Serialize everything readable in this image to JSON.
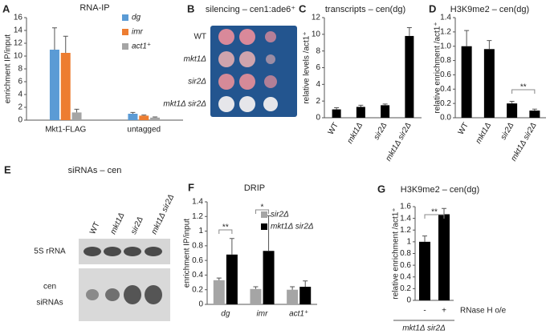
{
  "chart_data": [
    {
      "panel": "A",
      "type": "bar",
      "title": "RNA-IP",
      "y_label": "enrichment IP/input",
      "categories": [
        "Mkt1-FLAG",
        "untagged"
      ],
      "series": [
        {
          "name": "dg",
          "color": "#5b9bd5",
          "values": [
            11.0,
            1.0
          ],
          "errors": [
            3.4,
            0.2
          ]
        },
        {
          "name": "imr",
          "color": "#ed7d31",
          "values": [
            10.5,
            0.7
          ],
          "errors": [
            2.6,
            0.1
          ]
        },
        {
          "name": "act1⁺",
          "color": "#a5a5a5",
          "values": [
            1.2,
            0.4
          ],
          "errors": [
            0.5,
            0.1
          ]
        }
      ],
      "ylim": [
        0,
        16
      ],
      "yticks": [
        0,
        2,
        4,
        6,
        8,
        10,
        12,
        14,
        16
      ]
    },
    {
      "panel": "C",
      "type": "bar",
      "title": "transcripts – cen(dg)",
      "y_label": "relative levels /act1⁺",
      "categories": [
        "WT",
        "mkt1Δ",
        "sir2Δ",
        "mkt1Δ sir2Δ"
      ],
      "values": [
        1.0,
        1.3,
        1.5,
        9.8
      ],
      "errors": [
        0.2,
        0.2,
        0.15,
        1.0
      ],
      "color": "#000000",
      "ylim": [
        0,
        12
      ],
      "yticks": [
        0,
        2,
        4,
        6,
        8,
        10,
        12
      ]
    },
    {
      "panel": "D",
      "type": "bar",
      "title": "H3K9me2 – cen(dg)",
      "y_label": "relative enrichment /act1⁺",
      "categories": [
        "WT",
        "mkt1Δ",
        "sir2Δ",
        "mkt1Δ sir2Δ"
      ],
      "values": [
        1.0,
        0.96,
        0.2,
        0.1
      ],
      "errors": [
        0.22,
        0.12,
        0.03,
        0.02
      ],
      "color": "#000000",
      "ylim": [
        0,
        1.4
      ],
      "yticks": [
        {
          "value": 0,
          "label": "0.0"
        },
        0.2,
        0.4,
        0.6,
        0.8,
        {
          "value": 1,
          "label": "1.0"
        },
        1.2,
        1.4
      ],
      "annotations": [
        "**"
      ]
    },
    {
      "panel": "F",
      "type": "bar",
      "title": "DRIP",
      "y_label": "enrichment IP/input",
      "categories": [
        "dg",
        "imr",
        "act1⁺"
      ],
      "series": [
        {
          "name": "sir2Δ",
          "color": "#a5a5a5",
          "values": [
            0.33,
            0.21,
            0.2
          ],
          "errors": [
            0.03,
            0.03,
            0.04
          ]
        },
        {
          "name": "mkt1Δ sir2Δ",
          "color": "#000000",
          "values": [
            0.68,
            0.73,
            0.24
          ],
          "errors": [
            0.22,
            0.48,
            0.08
          ]
        }
      ],
      "ylim": [
        0,
        1.4
      ],
      "yticks": [
        0,
        0.2,
        0.4,
        0.6,
        0.8,
        1,
        1.2,
        1.4
      ],
      "annotations": [
        "**",
        "*"
      ]
    },
    {
      "panel": "G",
      "type": "bar",
      "title": "H3K9me2 – cen(dg)",
      "y_label": "relative enrichment /act1⁺",
      "categories": [
        "-",
        "+"
      ],
      "x_label": "RNase H o/e",
      "genotype": "mkt1Δ sir2Δ",
      "values": [
        1.0,
        1.47
      ],
      "errors": [
        0.1,
        0.1
      ],
      "color": "#000000",
      "ylim": [
        0,
        1.6
      ],
      "yticks": [
        0,
        0.2,
        0.4,
        0.6,
        0.8,
        1,
        1.2,
        1.4,
        1.6
      ],
      "annotations": [
        "**"
      ]
    }
  ],
  "images": [
    {
      "panel": "B",
      "title": "silencing – cen1:ade6⁺",
      "rows": [
        "WT",
        "mkt1Δ",
        "sir2Δ",
        "mkt1Δ sir2Δ"
      ]
    },
    {
      "panel": "E",
      "title": "siRNAs – cen",
      "columns": [
        "WT",
        "mkt1Δ",
        "sir2Δ",
        "mkt1Δ sir2Δ"
      ],
      "blot_labels": [
        "5S rRNA",
        "cen",
        "siRNAs"
      ]
    }
  ]
}
